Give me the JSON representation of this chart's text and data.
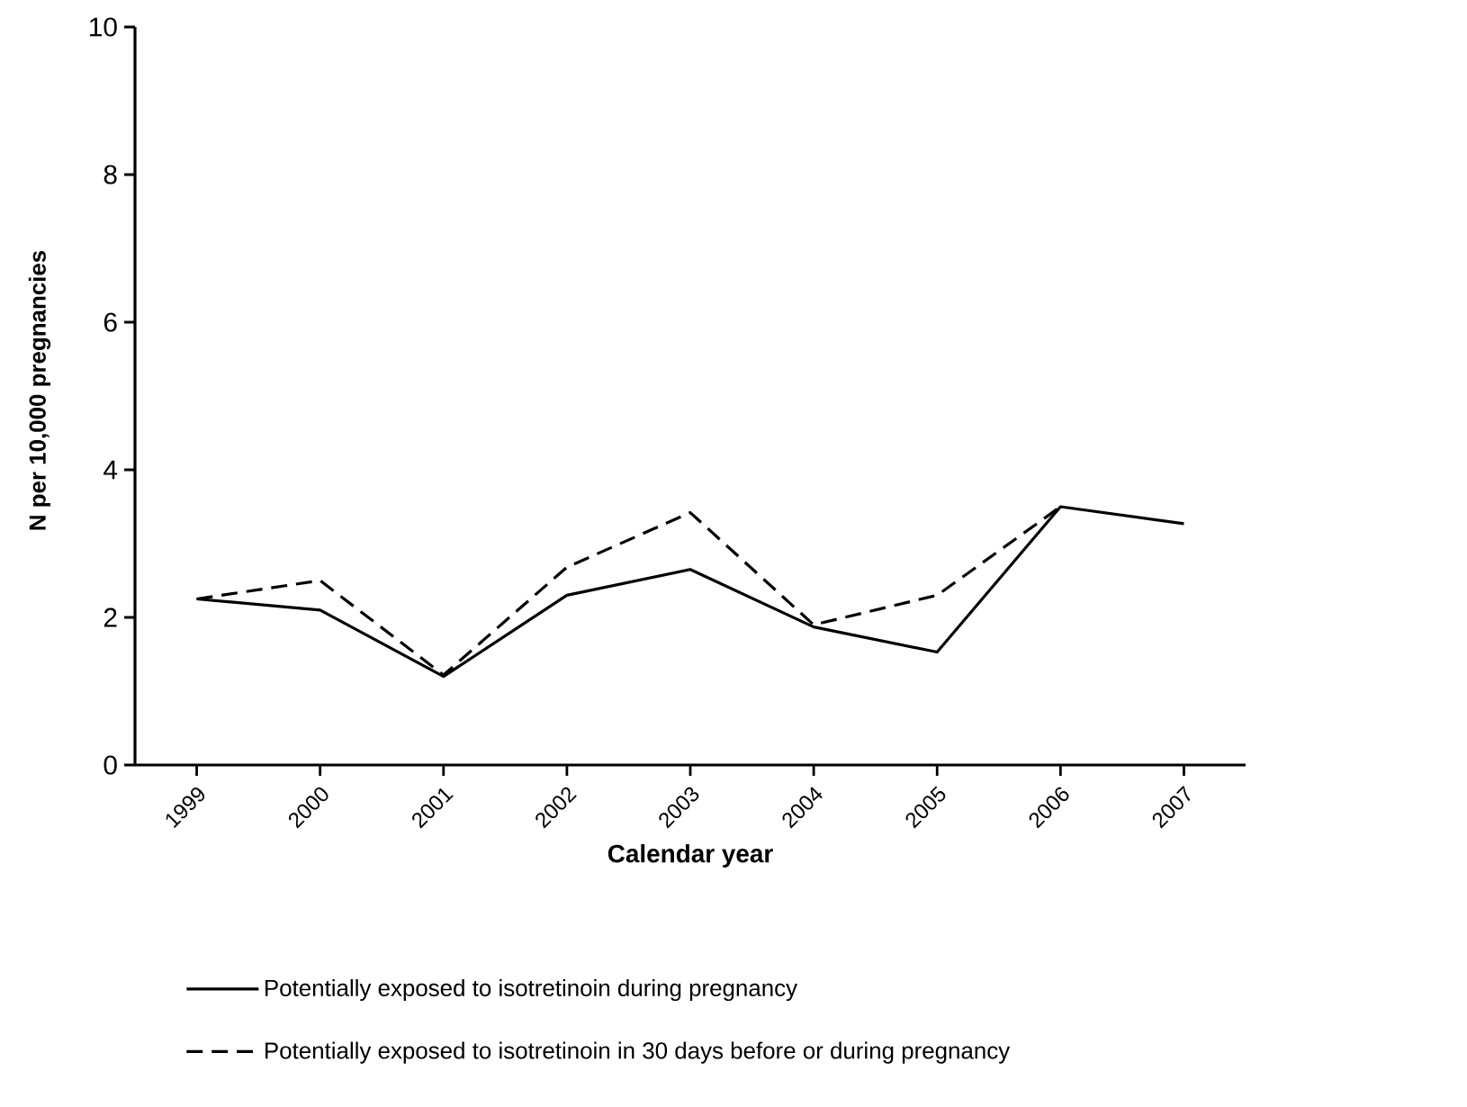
{
  "chart_data": {
    "type": "line",
    "xlabel": "Calendar year",
    "ylabel": "N per 10,000 pregnancies",
    "categories": [
      "1999",
      "2000",
      "2001",
      "2002",
      "2003",
      "2004",
      "2005",
      "2006",
      "2007"
    ],
    "series": [
      {
        "name": "Potentially exposed to isotretinoin during pregnancy",
        "color": "#000000",
        "line_style": "solid",
        "values": [
          2.25,
          2.1,
          1.2,
          2.3,
          2.65,
          1.87,
          1.53,
          3.5,
          3.27
        ]
      },
      {
        "name": "Potentially exposed to isotretinoin in 30 days before or during pregnancy",
        "color": "#000000",
        "line_style": "dashed",
        "values": [
          2.25,
          2.5,
          1.22,
          2.68,
          3.42,
          1.9,
          2.3,
          3.5,
          null
        ]
      }
    ],
    "ylim": [
      0,
      10
    ],
    "yticks": [
      0,
      2,
      4,
      6,
      8,
      10
    ],
    "grid": false,
    "legend": "bottom",
    "marker": "none"
  }
}
